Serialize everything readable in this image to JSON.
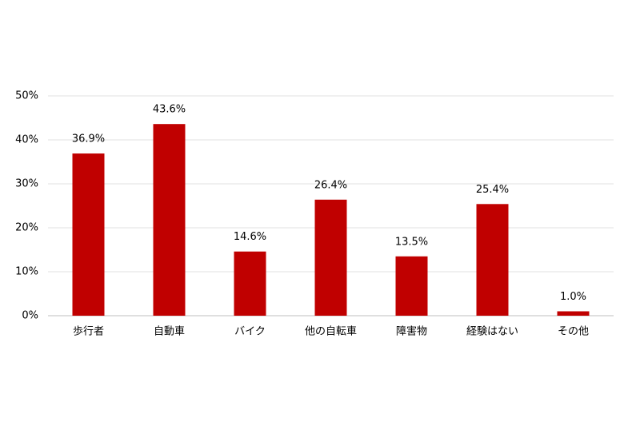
{
  "chart_data": {
    "type": "bar",
    "categories": [
      "歩行者",
      "自動車",
      "バイク",
      "他の自転車",
      "障害物",
      "経験はない",
      "その他"
    ],
    "values": [
      36.9,
      43.6,
      14.6,
      26.4,
      13.5,
      25.4,
      1.0
    ],
    "value_labels": [
      "36.9%",
      "43.6%",
      "14.6%",
      "26.4%",
      "13.5%",
      "25.4%",
      "1.0%"
    ],
    "color": "#c00000",
    "ylim": [
      0,
      50
    ],
    "yticks": [
      {
        "value": 0,
        "label": "0%"
      },
      {
        "value": 10,
        "label": "10%"
      },
      {
        "value": 20,
        "label": "20%"
      },
      {
        "value": 30,
        "label": "30%"
      },
      {
        "value": 40,
        "label": "40%"
      },
      {
        "value": 50,
        "label": "50%"
      }
    ],
    "grid": true
  }
}
